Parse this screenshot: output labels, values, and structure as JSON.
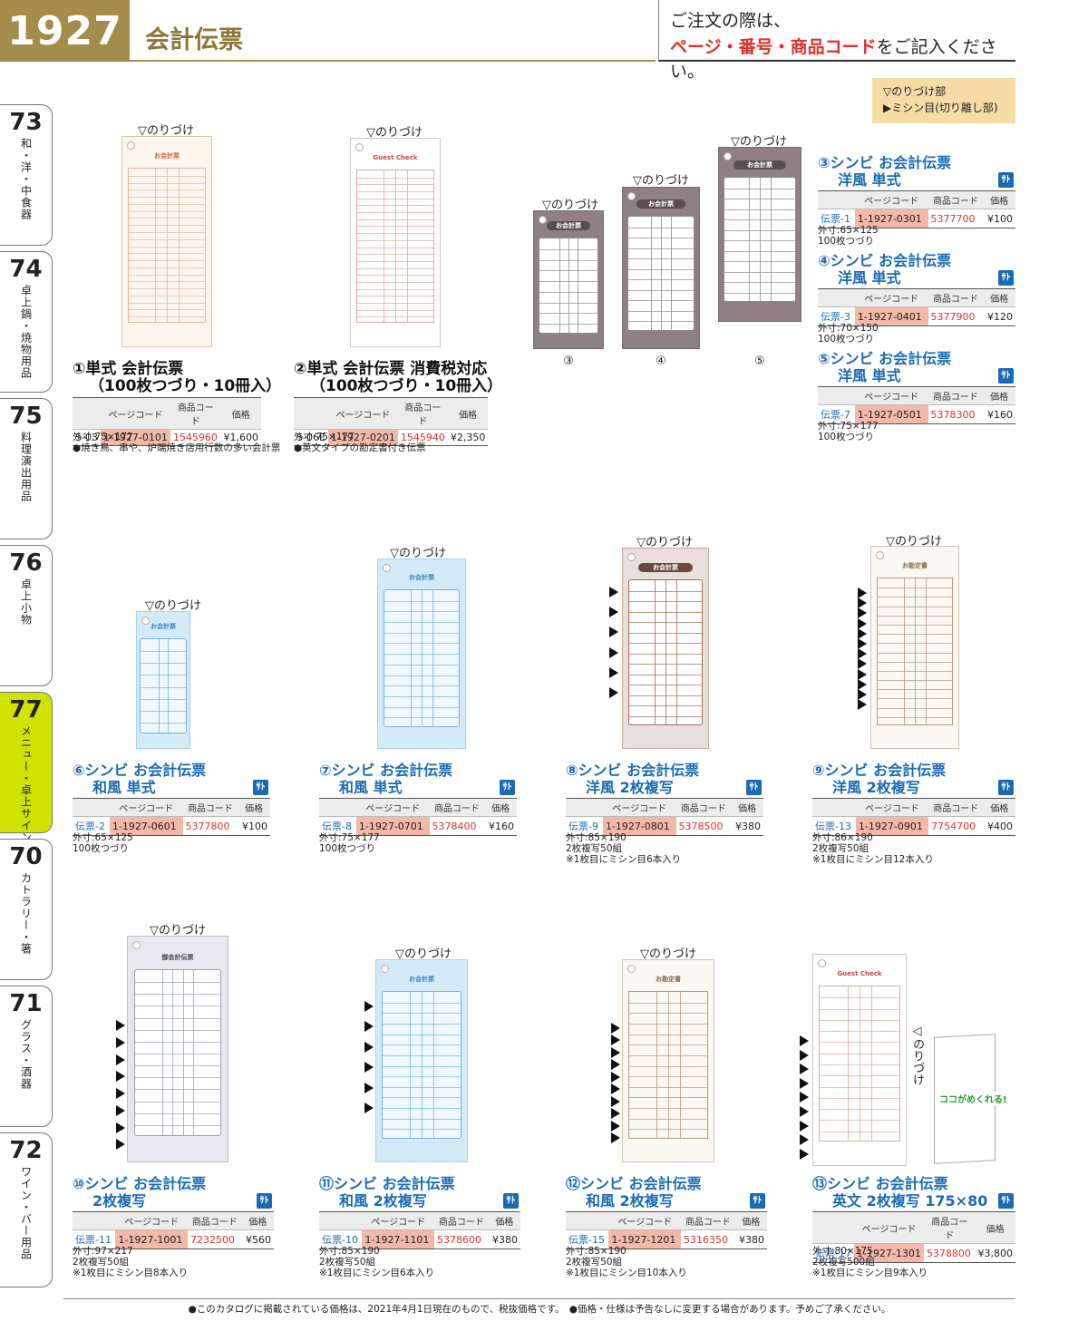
{
  "header": {
    "page_number": "1927",
    "title": "会計伝票",
    "order_line1": "ご注文の際は、",
    "order_line2_red": "ページ・番号・商品コード",
    "order_line2_rest": "をご記入ください。"
  },
  "legend": {
    "line1": "▽のりづけ部",
    "line2": "▶ミシン目(切り離し部)"
  },
  "tabs": [
    {
      "num": "73",
      "label": "和・洋・中食器"
    },
    {
      "num": "74",
      "label": "卓上鍋・焼物用品"
    },
    {
      "num": "75",
      "label": "料理演出用品"
    },
    {
      "num": "76",
      "label": "卓上小物"
    },
    {
      "num": "77",
      "label": "メニュー・卓上サイン"
    },
    {
      "num": "70",
      "label": "カトラリー・箸"
    },
    {
      "num": "71",
      "label": "グラス・酒器"
    },
    {
      "num": "72",
      "label": "ワイン・バー用品"
    }
  ],
  "glue_label": "▽のりづけ",
  "glue_label_side": "◁のりづけ",
  "table_headers": {
    "page_code": "ページコード",
    "item_code": "商品コード",
    "price": "価格"
  },
  "sa_icon": "ｻﾄ",
  "thumb_labels": [
    "③",
    "④",
    "⑤"
  ],
  "promo_text": "ココがめくれる!",
  "products": [
    {
      "name1": "①単式 会計伝票",
      "name2": "（100枚つづり・10冊入）",
      "model": "S-03",
      "page_code": "1-1927-0101",
      "item_code": "1545960",
      "price": "¥1,600",
      "notes": "外寸:75×177\n●焼き鳥、串や、炉端焼き店用行数の多い会計票"
    },
    {
      "name1": "②単式 会計伝票 消費税対応",
      "name2": "（100枚つづり・10冊入）",
      "model": "S-06E",
      "page_code": "1-1927-0201",
      "item_code": "1545940",
      "price": "¥2,350",
      "notes": "外寸:75×177\n●英文タイプの勘定書付き伝票"
    },
    {
      "name1": "③シンビ お会計伝票",
      "name2": "洋風 単式",
      "model": "伝票-1",
      "page_code": "1-1927-0301",
      "item_code": "5377700",
      "price": "¥100",
      "notes": "外寸:65×125\n100枚つづり"
    },
    {
      "name1": "④シンビ お会計伝票",
      "name2": "洋風 単式",
      "model": "伝票-3",
      "page_code": "1-1927-0401",
      "item_code": "5377900",
      "price": "¥120",
      "notes": "外寸:70×150\n100枚つづり"
    },
    {
      "name1": "⑤シンビ お会計伝票",
      "name2": "洋風 単式",
      "model": "伝票-7",
      "page_code": "1-1927-0501",
      "item_code": "5378300",
      "price": "¥160",
      "notes": "外寸:75×177\n100枚つづり"
    },
    {
      "name1": "⑥シンビ お会計伝票",
      "name2": "和風 単式",
      "model": "伝票-2",
      "page_code": "1-1927-0601",
      "item_code": "5377800",
      "price": "¥100",
      "notes": "外寸:65×125\n100枚つづり"
    },
    {
      "name1": "⑦シンビ お会計伝票",
      "name2": "和風 単式",
      "model": "伝票-8",
      "page_code": "1-1927-0701",
      "item_code": "5378400",
      "price": "¥160",
      "notes": "外寸:75×177\n100枚つづり"
    },
    {
      "name1": "⑧シンビ お会計伝票",
      "name2": "洋風 2枚複写",
      "model": "伝票-9",
      "page_code": "1-1927-0801",
      "item_code": "5378500",
      "price": "¥380",
      "notes": "外寸:85×190\n2枚複写50組\n※1枚目にミシン目6本入り"
    },
    {
      "name1": "⑨シンビ お会計伝票",
      "name2": "洋風 2枚複写",
      "model": "伝票-13",
      "page_code": "1-1927-0901",
      "item_code": "7754700",
      "price": "¥400",
      "notes": "外寸:86×190\n2枚複写50組\n※1枚目にミシン目12本入り"
    },
    {
      "name1": "⑩シンビ お会計伝票",
      "name2": "2枚複写",
      "model": "伝票-11",
      "page_code": "1-1927-1001",
      "item_code": "7232500",
      "price": "¥560",
      "notes": "外寸:97×217\n2枚複写50組\n※1枚目にミシン目8本入り"
    },
    {
      "name1": "⑪シンビ お会計伝票",
      "name2": "和風 2枚複写",
      "model": "伝票-10",
      "page_code": "1-1927-1101",
      "item_code": "5378600",
      "price": "¥380",
      "notes": "外寸:85×190\n2枚複写50組\n※1枚目にミシン目6本入り"
    },
    {
      "name1": "⑫シンビ お会計伝票",
      "name2": "和風 2枚複写",
      "model": "伝票-15",
      "page_code": "1-1927-1201",
      "item_code": "5316350",
      "price": "¥380",
      "notes": "外寸:85×190\n2枚複写50組\n※1枚目にミシン目10本入り"
    },
    {
      "name1": "⑬シンビ お会計伝票",
      "name2": "英文 2枚複写 175×80",
      "model": "伝票-17",
      "page_code": "1-1927-1301",
      "item_code": "5378800",
      "price": "¥3,800",
      "notes": "外寸:80×175\n2枚複写500組\n※1枚目にミシン目9本入り"
    }
  ],
  "ticket_titles": {
    "okaikei": "お会計票",
    "guest_check": "Guest Check",
    "okanjo": "お勘定書",
    "go_kaikei": "御会計伝票"
  },
  "footer": "●このカタログに掲載されている価格は、2021年4月1日現在のもので、税抜価格です。　●価格・仕様は予告なしに変更する場合があります。予めご了承ください。"
}
